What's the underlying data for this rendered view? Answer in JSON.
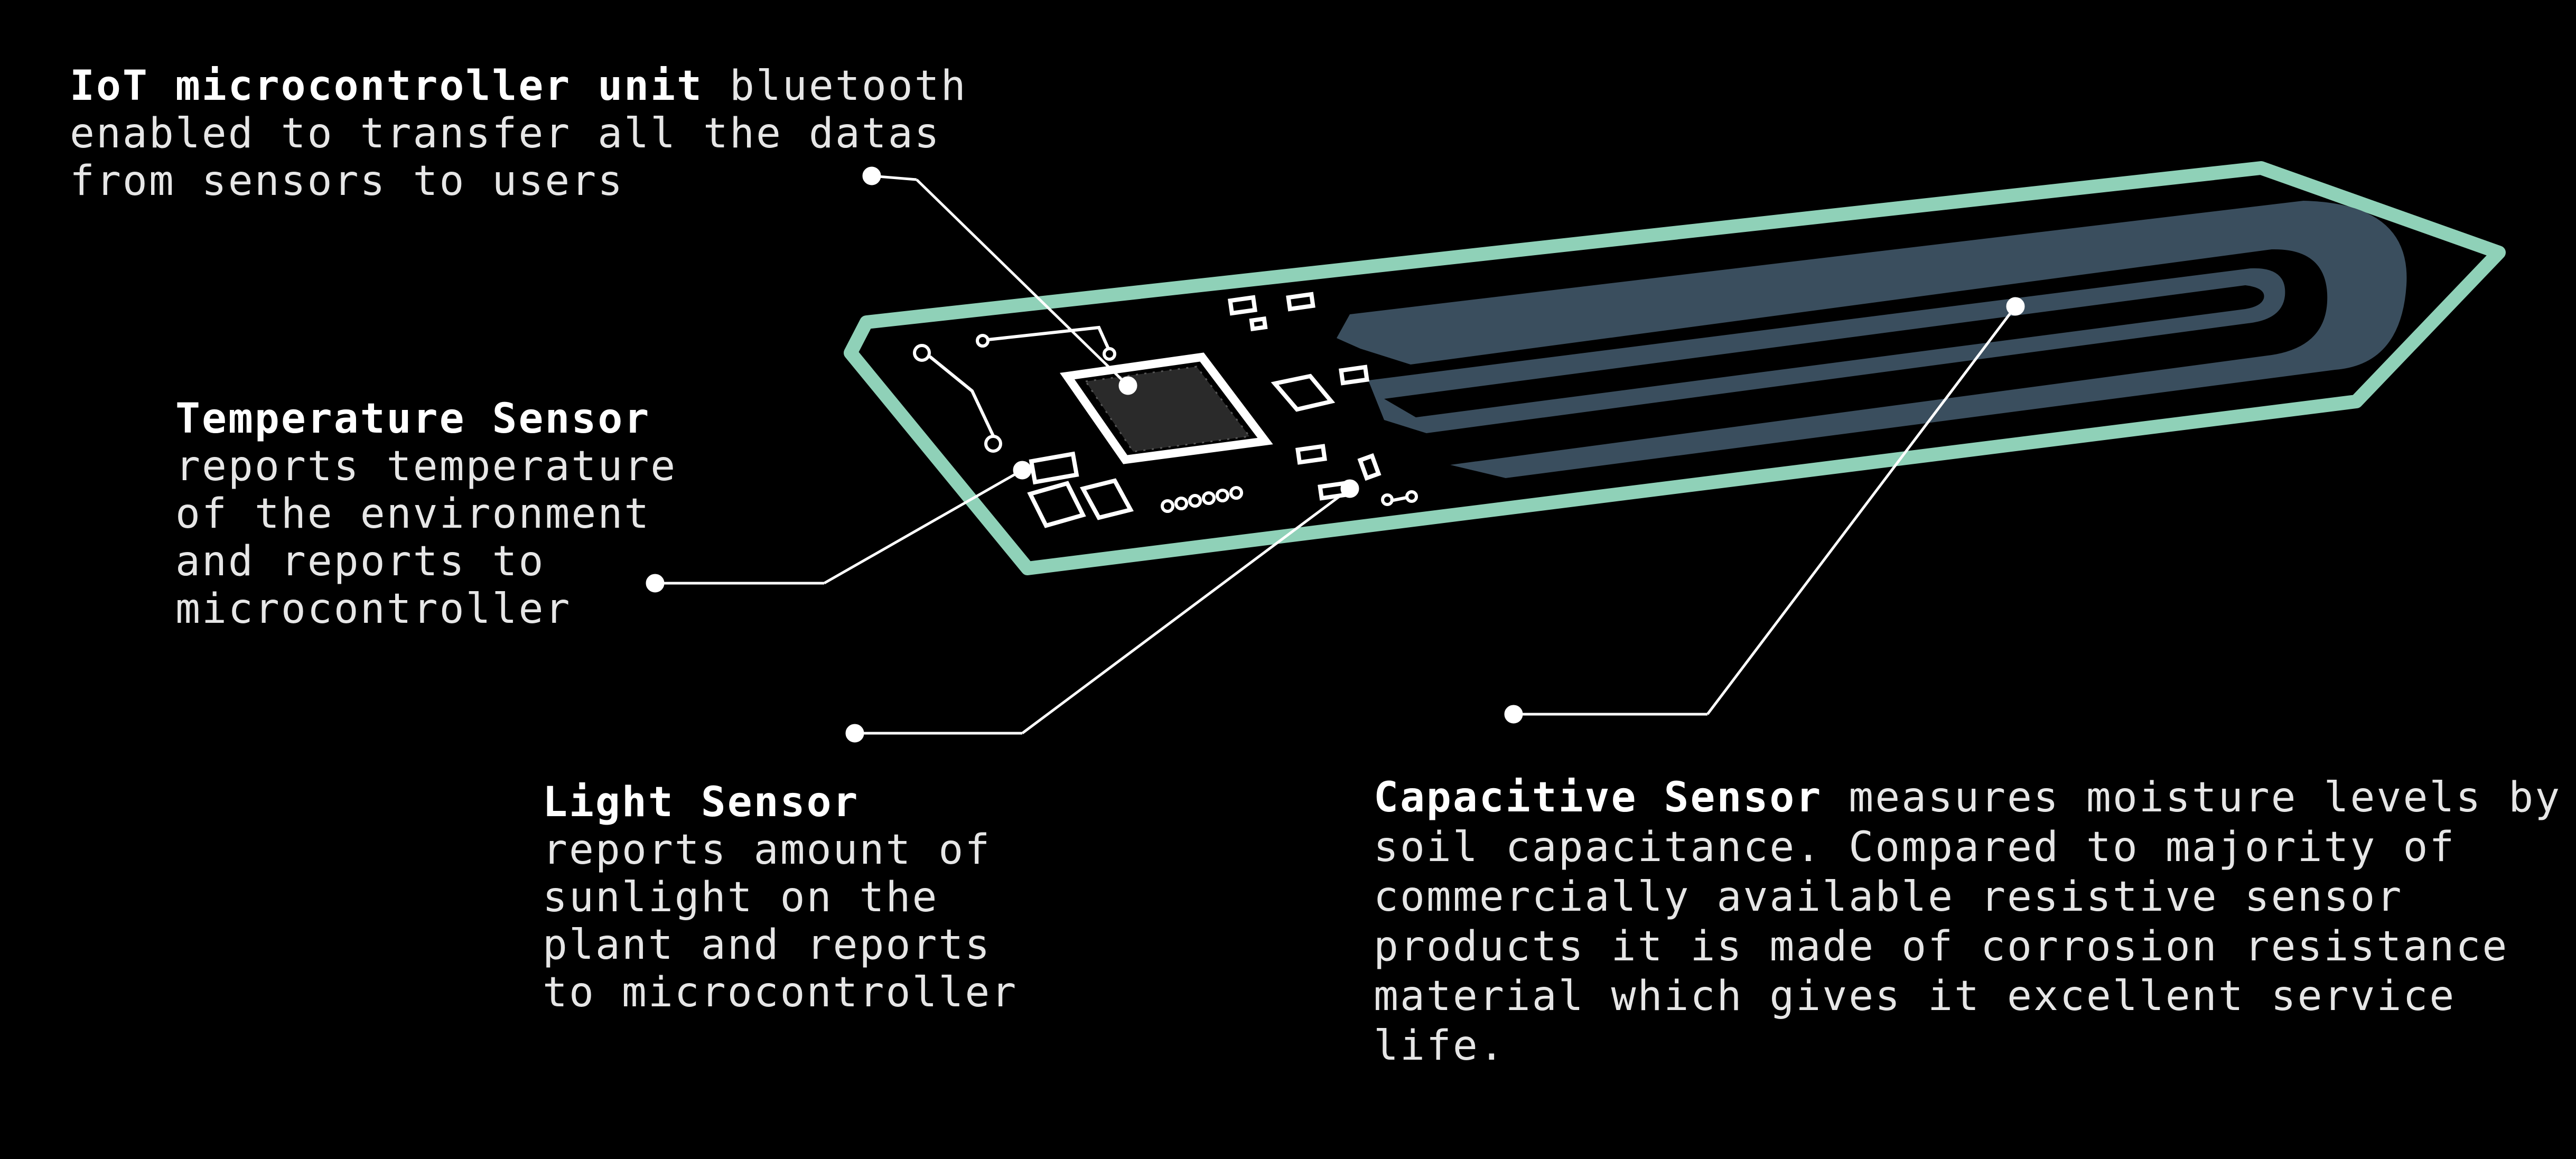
{
  "callouts": {
    "iot": {
      "title": "IoT microcontroller unit",
      "body": "bluetooth enabled to transfer all the datas from sensors to users"
    },
    "temperature": {
      "title": "Temperature Sensor",
      "body": "reports temperature of the environment and reports to microcontroller"
    },
    "light": {
      "title": "Light Sensor",
      "body": "reports amount of sunlight on the plant and reports to microcontroller"
    },
    "capacitive": {
      "title": "Capacitive Sensor",
      "body": "measures moisture levels by soil capacitance. Compared to majority of commercially available resistive sensor products it is made of corrosion resistance material which gives it excellent service life."
    }
  },
  "colors": {
    "background": "#000000",
    "board_outline": "#8fd1b8",
    "electrode": "#3a4e5e",
    "components": "#ffffff",
    "text": "#e6e6e6"
  }
}
